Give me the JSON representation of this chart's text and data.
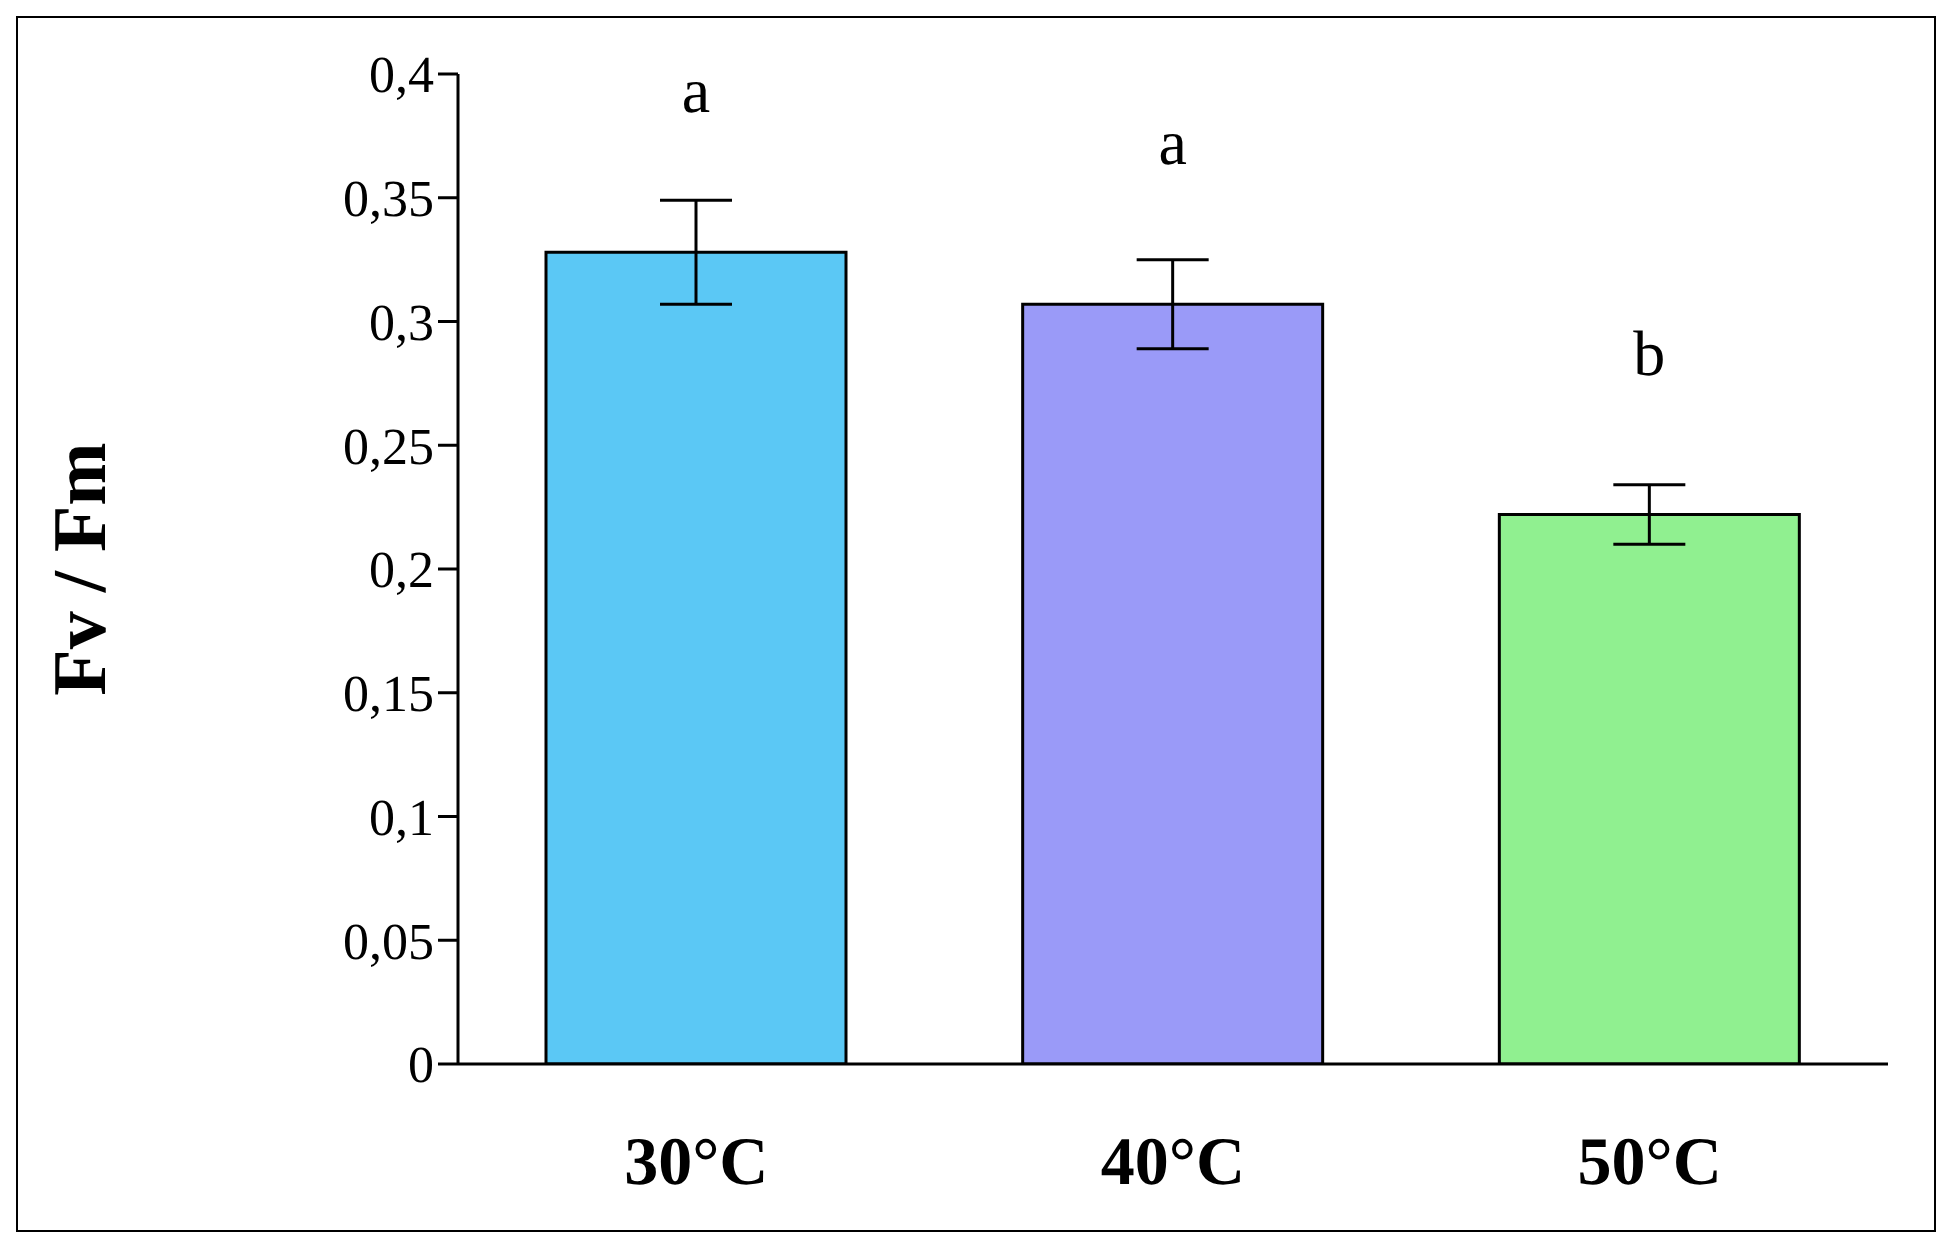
{
  "chart_data": {
    "type": "bar",
    "ylabel": "Fv / Fm",
    "categories": [
      "30°C",
      "40°C",
      "50°C"
    ],
    "values": [
      0.328,
      0.307,
      0.222
    ],
    "errors": [
      0.021,
      0.018,
      0.012
    ],
    "colors": [
      "#5bc8f5",
      "#9a9af8",
      "#90f090"
    ],
    "ylim": [
      0,
      0.4
    ],
    "yticks": [
      0,
      {
        "value": 0.05,
        "label": "0,05"
      },
      {
        "value": 0.1,
        "label": "0,1"
      },
      {
        "value": 0.15,
        "label": "0,15"
      },
      {
        "value": 0.2,
        "label": "0,2"
      },
      {
        "value": 0.25,
        "label": "0,25"
      },
      {
        "value": 0.3,
        "label": "0,3"
      },
      {
        "value": 0.35,
        "label": "0,35"
      },
      {
        "value": 0.4,
        "label": "0,4"
      }
    ],
    "annotations": [
      "a",
      "a",
      "b"
    ],
    "grid": false,
    "legend": false
  }
}
